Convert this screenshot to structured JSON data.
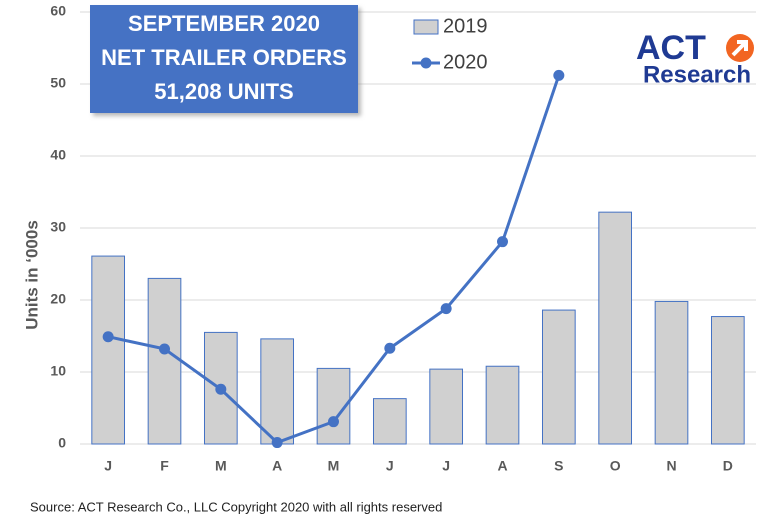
{
  "chart_data": {
    "type": "bar",
    "title": [
      "SEPTEMBER 2020",
      "NET TRAILER ORDERS",
      "51,208 UNITS"
    ],
    "logo": [
      "ACT",
      "Research"
    ],
    "y_label": "Units in ‘000s",
    "source": "Source: ACT Research Co., LLC  Copyright 2020 with all rights reserved",
    "categories": [
      "J",
      "F",
      "M",
      "A",
      "M",
      "J",
      "J",
      "A",
      "S",
      "O",
      "N",
      "D"
    ],
    "series": [
      {
        "name": "2019",
        "type": "bar",
        "color": "#d0d0d0",
        "values": [
          26.1,
          23,
          15.5,
          14.6,
          10.5,
          6.3,
          10.4,
          10.8,
          18.6,
          32.2,
          19.8,
          17.7
        ]
      },
      {
        "name": "2020",
        "type": "line",
        "color": "#4472c4",
        "values": [
          14.9,
          13.2,
          7.6,
          0.2,
          3.1,
          13.3,
          18.8,
          28.1,
          51.2,
          null,
          null,
          null
        ]
      }
    ],
    "ylim": [
      0,
      60
    ],
    "yticks": [
      0,
      10,
      20,
      30,
      40,
      50,
      60
    ],
    "grid": true
  }
}
